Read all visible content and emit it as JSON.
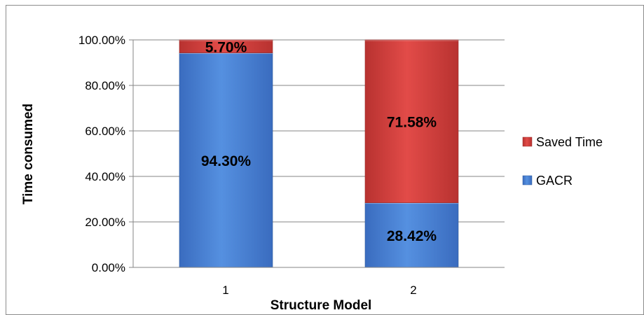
{
  "chart_data": {
    "type": "bar",
    "stacked": true,
    "percent_stacked": true,
    "categories": [
      "1",
      "2"
    ],
    "series": [
      {
        "name": "GACR",
        "values": [
          94.3,
          28.42
        ],
        "labels": [
          "94.30%",
          "28.42%"
        ],
        "color": "#4a7fcf"
      },
      {
        "name": "Saved Time",
        "values": [
          5.7,
          71.58
        ],
        "labels": [
          "5.70%",
          "71.58%"
        ],
        "color": "#cf3f3d"
      }
    ],
    "xlabel": "Structure Model",
    "ylabel": "Time consumed",
    "ylim": [
      0,
      100
    ],
    "yticks": [
      "0.00%",
      "20.00%",
      "40.00%",
      "60.00%",
      "80.00%",
      "100.00%"
    ],
    "ytick_values": [
      0,
      20,
      40,
      60,
      80,
      100
    ],
    "grid": true,
    "legend_position": "right"
  }
}
